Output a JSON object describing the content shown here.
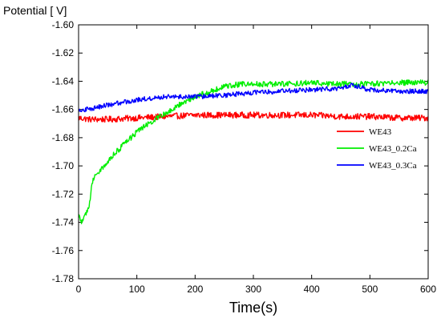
{
  "chart_data": {
    "type": "line",
    "title": "",
    "xlabel": "Time(s)",
    "ylabel": "Potential [ V]",
    "xlim": [
      0,
      600
    ],
    "ylim": [
      -1.78,
      -1.6
    ],
    "xticks": [
      0,
      100,
      200,
      300,
      400,
      500,
      600
    ],
    "xtick_labels": [
      "0",
      "100",
      "200",
      "300",
      "400",
      "500",
      "600"
    ],
    "yticks": [
      -1.6,
      -1.62,
      -1.64,
      -1.66,
      -1.68,
      -1.7,
      -1.72,
      -1.74,
      -1.76,
      -1.78
    ],
    "ytick_labels": [
      "-1.60",
      "-1.62",
      "-1.64",
      "-1.66",
      "-1.68",
      "-1.70",
      "-1.72",
      "-1.74",
      "-1.76",
      "-1.78"
    ],
    "grid": false,
    "legend_position": "right",
    "series": [
      {
        "name": "WE43",
        "color": "#ff0000",
        "x": [
          0,
          20,
          50,
          100,
          150,
          200,
          250,
          300,
          350,
          400,
          450,
          500,
          550,
          600
        ],
        "y": [
          -1.666,
          -1.667,
          -1.667,
          -1.666,
          -1.665,
          -1.664,
          -1.664,
          -1.664,
          -1.664,
          -1.664,
          -1.665,
          -1.665,
          -1.666,
          -1.666
        ]
      },
      {
        "name": "WE43_0.2Ca",
        "color": "#00ee00",
        "x": [
          0,
          5,
          10,
          15,
          20,
          22,
          25,
          30,
          40,
          50,
          60,
          70,
          80,
          90,
          100,
          110,
          120,
          140,
          160,
          180,
          200,
          220,
          240,
          260,
          280,
          300,
          350,
          400,
          450,
          500,
          550,
          600
        ],
        "y": [
          -1.735,
          -1.74,
          -1.737,
          -1.732,
          -1.725,
          -1.713,
          -1.71,
          -1.706,
          -1.702,
          -1.697,
          -1.692,
          -1.688,
          -1.684,
          -1.68,
          -1.676,
          -1.673,
          -1.67,
          -1.665,
          -1.66,
          -1.655,
          -1.651,
          -1.648,
          -1.645,
          -1.643,
          -1.642,
          -1.642,
          -1.642,
          -1.641,
          -1.642,
          -1.642,
          -1.641,
          -1.641
        ]
      },
      {
        "name": "WE43_0.3Ca",
        "color": "#0000ff",
        "x": [
          0,
          25,
          50,
          75,
          100,
          125,
          150,
          175,
          200,
          250,
          300,
          350,
          400,
          450,
          470,
          500,
          550,
          600
        ],
        "y": [
          -1.661,
          -1.659,
          -1.657,
          -1.655,
          -1.653,
          -1.652,
          -1.651,
          -1.651,
          -1.651,
          -1.65,
          -1.648,
          -1.647,
          -1.646,
          -1.645,
          -1.643,
          -1.646,
          -1.647,
          -1.647
        ]
      }
    ]
  }
}
